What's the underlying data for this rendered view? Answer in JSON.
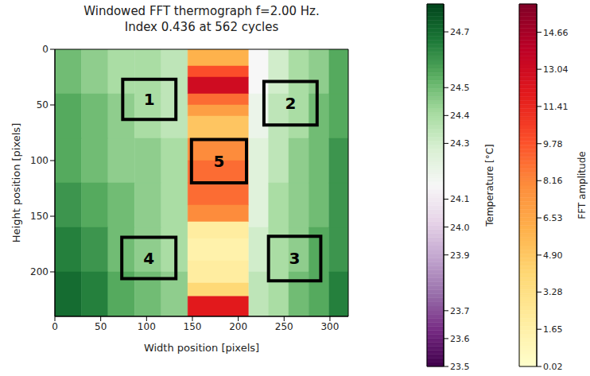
{
  "chart_data": {
    "type": "heatmap",
    "title": "Windowed FFT thermograph f=2.00 Hz.",
    "subtitle": "Index 0.436 at 562 cycles",
    "x_label": "Width position [pixels]",
    "y_label": "Height position [pixels]",
    "xlim": [
      0,
      320
    ],
    "ylim": [
      240,
      0
    ],
    "xticks": [
      0,
      50,
      100,
      150,
      200,
      250,
      300
    ],
    "yticks": [
      0,
      50,
      100,
      150,
      200
    ],
    "temperature": {
      "label": "Temperature [°C]",
      "x": [
        0,
        29,
        58,
        87,
        116,
        145,
        211,
        233,
        255,
        277,
        299,
        320
      ],
      "y": [
        0,
        40,
        80,
        120,
        160,
        200,
        240
      ],
      "values": [
        [
          24.5,
          24.45,
          24.4,
          24.4,
          24.35,
          null,
          24.15,
          24.3,
          24.4,
          24.45,
          24.55
        ],
        [
          24.55,
          24.5,
          24.45,
          24.4,
          24.35,
          null,
          24.2,
          24.35,
          24.4,
          24.5,
          24.55
        ],
        [
          24.55,
          24.5,
          24.45,
          24.45,
          24.4,
          null,
          24.25,
          24.35,
          24.45,
          24.5,
          24.6
        ],
        [
          24.6,
          24.55,
          24.5,
          24.45,
          24.4,
          null,
          24.25,
          24.4,
          24.45,
          24.5,
          24.6
        ],
        [
          24.65,
          24.6,
          24.5,
          24.45,
          24.4,
          null,
          24.3,
          24.4,
          24.45,
          24.55,
          24.6
        ],
        [
          24.7,
          24.65,
          24.55,
          24.5,
          24.45,
          null,
          24.35,
          24.4,
          24.5,
          24.55,
          24.65
        ]
      ],
      "colorbar_range": [
        23.5,
        24.8
      ],
      "colorbar_ticks": [
        23.5,
        23.6,
        23.7,
        23.9,
        {
          "value": 24,
          "label": "24.0"
        },
        24.1,
        24.3,
        24.4,
        24.5,
        24.7
      ]
    },
    "fft_amplitude": {
      "label": "FFT amplitude",
      "x": [
        145,
        211
      ],
      "y": [
        0,
        15,
        25,
        40,
        50,
        60,
        80,
        100,
        120,
        140,
        155,
        170,
        190,
        210,
        222,
        240
      ],
      "values": [
        [
          6
        ],
        [
          10
        ],
        [
          13
        ],
        [
          9
        ],
        [
          7
        ],
        [
          5
        ],
        [
          8
        ],
        [
          9
        ],
        [
          9
        ],
        [
          8
        ],
        [
          2
        ],
        [
          1.5
        ],
        [
          2
        ],
        [
          4
        ],
        [
          12
        ]
      ],
      "colorbar_range": [
        0.02,
        15.9
      ],
      "colorbar_ticks": [
        0.02,
        1.65,
        3.28,
        {
          "value": 4.9,
          "label": "4.90"
        },
        6.53,
        8.16,
        9.78,
        11.41,
        13.04,
        14.66
      ]
    },
    "annotations": [
      {
        "text": "1",
        "x": [
          74,
          132
        ],
        "y": [
          27,
          63
        ]
      },
      {
        "text": "2",
        "x": [
          228,
          286
        ],
        "y": [
          29,
          68
        ]
      },
      {
        "text": "3",
        "x": [
          233,
          290
        ],
        "y": [
          168,
          208
        ]
      },
      {
        "text": "4",
        "x": [
          73,
          132
        ],
        "y": [
          169,
          206
        ]
      },
      {
        "text": "5",
        "x": [
          149,
          209
        ],
        "y": [
          81,
          120
        ]
      }
    ]
  }
}
